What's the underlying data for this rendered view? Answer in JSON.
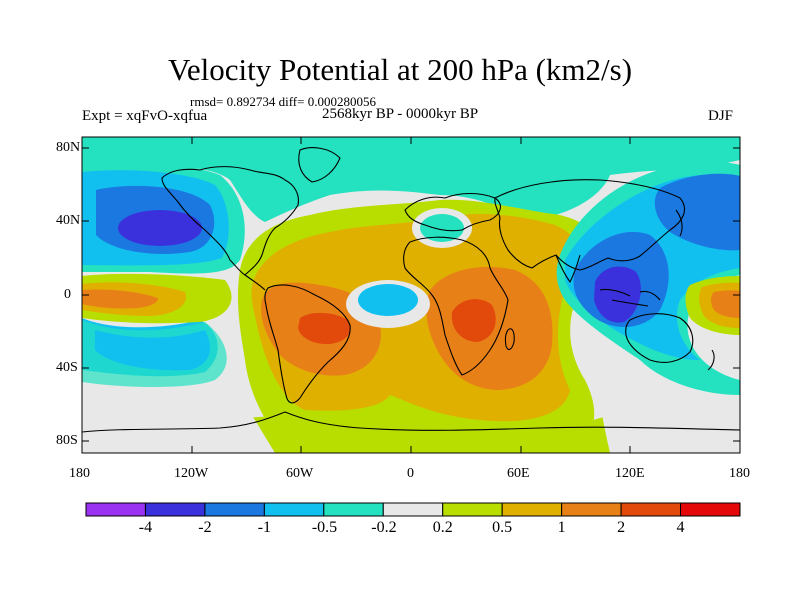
{
  "title": "Velocity Potential at 200 hPa (km2/s)",
  "stats": "rmsd= 0.892734 diff= 0.000280056",
  "experiment": "Expt = xqFvO-xqfua",
  "period": "2568kyr BP - 0000kyr BP",
  "season": "DJF",
  "lat_ticks": [
    "80N",
    "40N",
    "0",
    "40S",
    "80S"
  ],
  "lon_ticks": [
    "180",
    "120W",
    "60W",
    "0",
    "60E",
    "120E",
    "180"
  ],
  "colorbar": {
    "labels": [
      "-4",
      "-2",
      "-1",
      "-0.5",
      "-0.2",
      "0.2",
      "0.5",
      "1",
      "2",
      "4"
    ],
    "colors": [
      "#9b33f2",
      "#3a31dc",
      "#1a78e0",
      "#12c0f0",
      "#24e2c0",
      "#e8e8e8",
      "#b8de00",
      "#e0b000",
      "#e88018",
      "#e24a0c",
      "#e40808"
    ]
  },
  "colors": {
    "neutral": "#e8e8e8",
    "coast": "#000000"
  }
}
